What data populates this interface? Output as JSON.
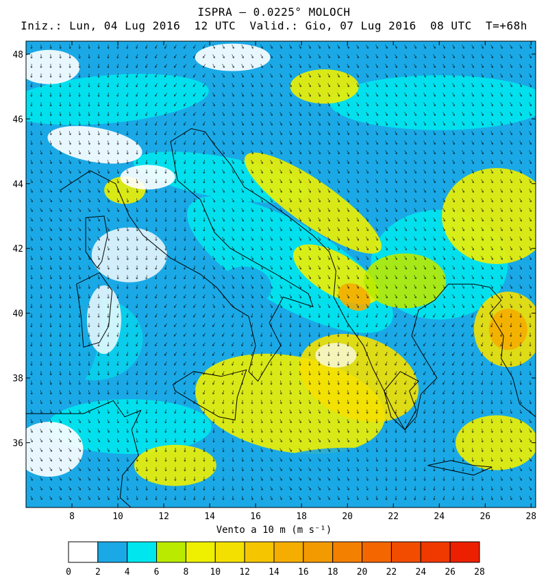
{
  "header": {
    "line1": "ISPRA — 0.0225° MOLOCH",
    "line2": "Iniz.: Lun, 04 Lug 2016  12 UTC  Valid.: Gio, 07 Lug 2016  08 UTC  T=+68h"
  },
  "map": {
    "lon_range": [
      6,
      28.2
    ],
    "lat_range": [
      34,
      48.4
    ],
    "lon_ticks": [
      8,
      10,
      12,
      14,
      16,
      18,
      20,
      22,
      24,
      26,
      28
    ],
    "lat_ticks": [
      36,
      38,
      40,
      42,
      44,
      46,
      48
    ]
  },
  "colorbar": {
    "label": "Vento a 10 m (m s⁻¹)",
    "levels": [
      "0",
      "2",
      "4",
      "6",
      "8",
      "10",
      "12",
      "14",
      "16",
      "18",
      "20",
      "22",
      "24",
      "26",
      "28"
    ],
    "colors": [
      "#ffffff",
      "#1aa9e6",
      "#00e6ee",
      "#b9ea00",
      "#eef000",
      "#f4e000",
      "#f5c500",
      "#f5ad00",
      "#f39a00",
      "#f48000",
      "#f46600",
      "#f24c00",
      "#ef3900",
      "#ec2000"
    ]
  },
  "chart_data": {
    "type": "heatmap",
    "title": "ISPRA — 0.0225° MOLOCH",
    "subtitle": "Iniz.: Lun, 04 Lug 2016  12 UTC  Valid.: Gio, 07 Lug 2016  08 UTC  T=+68h",
    "xlabel": "",
    "ylabel": "",
    "colorbar_label": "Vento a 10 m (m s⁻¹)",
    "x_ticks": [
      8,
      10,
      12,
      14,
      16,
      18,
      20,
      22,
      24,
      26,
      28
    ],
    "y_ticks": [
      36,
      38,
      40,
      42,
      44,
      46,
      48
    ],
    "levels": [
      0,
      2,
      4,
      6,
      8,
      10,
      12,
      14,
      16,
      18,
      20,
      22,
      24,
      26,
      28
    ]
  }
}
